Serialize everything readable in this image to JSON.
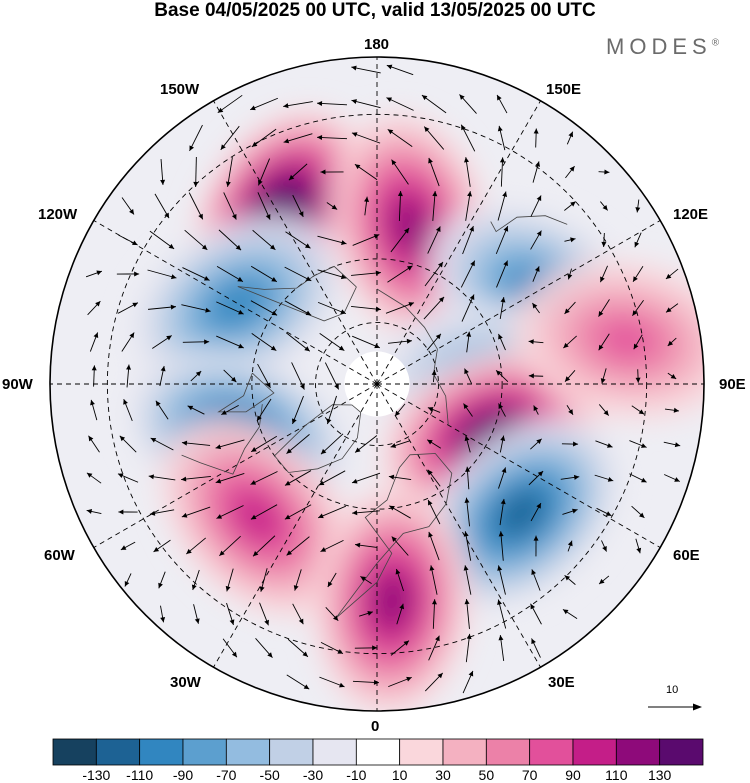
{
  "title": "Base 04/05/2025 00 UTC, valid 13/05/2025 00 UTC",
  "brand": "MODES",
  "brand_mark": "®",
  "map": {
    "projection": "north-polar-stereographic",
    "longitude_labels": {
      "top": "180",
      "top_left": "150W",
      "top_right": "150E",
      "upper_left": "120W",
      "upper_right": "120E",
      "left": "90W",
      "right": "90E",
      "lower_left": "60W",
      "lower_right": "60E",
      "bottom_left": "30W",
      "bottom_right": "30E",
      "bottom": "0"
    },
    "reference_vector_label": "10",
    "anomaly_centers": [
      {
        "sign": "positive",
        "lon_deg": -150,
        "lat_deg": 45,
        "level": 130
      },
      {
        "sign": "negative",
        "lon_deg": -120,
        "lat_deg": 52,
        "level": -70
      },
      {
        "sign": "positive",
        "lon_deg": 168,
        "lat_deg": 52,
        "level": 90
      },
      {
        "sign": "negative",
        "lon_deg": 120,
        "lat_deg": 47,
        "level": -70
      },
      {
        "sign": "negative",
        "lon_deg": 92,
        "lat_deg": 63,
        "level": -50
      },
      {
        "sign": "positive",
        "lon_deg": 66,
        "lat_deg": 60,
        "level": 110
      },
      {
        "sign": "negative",
        "lon_deg": -70,
        "lat_deg": 55,
        "level": -90
      },
      {
        "sign": "positive",
        "lon_deg": -42,
        "lat_deg": 48,
        "level": 70
      },
      {
        "sign": "negative",
        "lon_deg": 48,
        "lat_deg": 45,
        "level": -90
      },
      {
        "sign": "positive",
        "lon_deg": 4,
        "lat_deg": 40,
        "level": 90
      },
      {
        "sign": "positive",
        "lon_deg": 100,
        "lat_deg": 33,
        "level": 50
      }
    ]
  },
  "colorbar": {
    "colors": [
      "#16415f",
      "#1d6294",
      "#3186c0",
      "#5c9fcf",
      "#93bce0",
      "#c1d0e6",
      "#e6e6f1",
      "#ffffff",
      "#fad7dc",
      "#f4b1c1",
      "#ec81a8",
      "#e2509b",
      "#c41e88",
      "#8e0a7a",
      "#5a0a6e"
    ],
    "ticks": [
      "-130",
      "-110",
      "-90",
      "-70",
      "-50",
      "-30",
      "-10",
      "10",
      "30",
      "50",
      "70",
      "90",
      "110",
      "130"
    ]
  }
}
